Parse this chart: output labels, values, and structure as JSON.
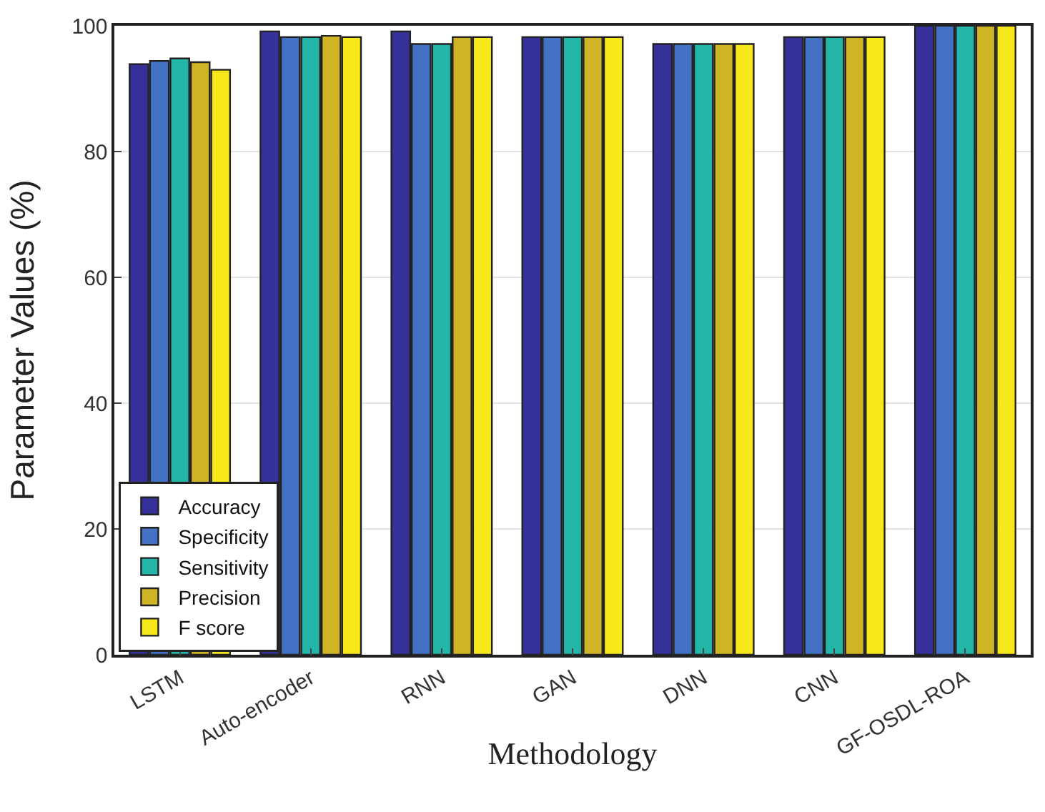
{
  "chart_data": {
    "type": "bar",
    "xlabel": "Methodology",
    "ylabel": "Parameter Values (%)",
    "categories": [
      "LSTM",
      "Auto-encoder",
      "RNN",
      "GAN",
      "DNN",
      "CNN",
      "GF-OSDL-ROA"
    ],
    "series": [
      {
        "name": "Accuracy",
        "color": "#35309a",
        "values": [
          93.9,
          99.1,
          99.1,
          98.2,
          97.1,
          98.2,
          100
        ]
      },
      {
        "name": "Specificity",
        "color": "#4372c4",
        "values": [
          94.4,
          98.2,
          97.1,
          98.2,
          97.1,
          98.2,
          100
        ]
      },
      {
        "name": "Sensitivity",
        "color": "#22b5a8",
        "values": [
          94.8,
          98.2,
          97.1,
          98.2,
          97.1,
          98.2,
          100
        ]
      },
      {
        "name": "Precision",
        "color": "#cfb526",
        "values": [
          94.2,
          98.4,
          98.2,
          98.2,
          97.1,
          98.2,
          100
        ]
      },
      {
        "name": "F score",
        "color": "#f7e81c",
        "values": [
          93.0,
          98.2,
          98.2,
          98.2,
          97.1,
          98.2,
          100
        ]
      }
    ],
    "ylim": [
      0,
      100
    ],
    "yticks": [
      0,
      20,
      40,
      60,
      80,
      100
    ],
    "grid": "y",
    "legend": "bottom left"
  }
}
